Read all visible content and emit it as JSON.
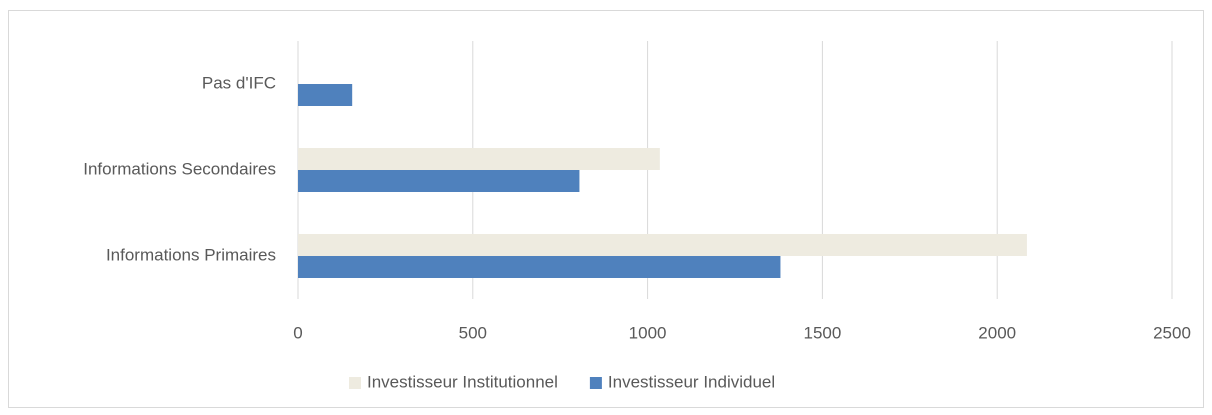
{
  "chart_data": {
    "type": "bar",
    "orientation": "horizontal",
    "categories": [
      "Pas d'IFC",
      "Informations Secondaires",
      "Informations Primaires"
    ],
    "series": [
      {
        "name": "Investisseur Institutionnel",
        "color": "#eeebe0",
        "values": [
          0,
          1035,
          2085
        ]
      },
      {
        "name": "Investisseur Individuel",
        "color": "#4f81bd",
        "values": [
          155,
          805,
          1380
        ]
      }
    ],
    "xlim": [
      0,
      2500
    ],
    "xticks": [
      0,
      500,
      1000,
      1500,
      2000,
      2500
    ],
    "grid": true,
    "legend": "bottom"
  }
}
